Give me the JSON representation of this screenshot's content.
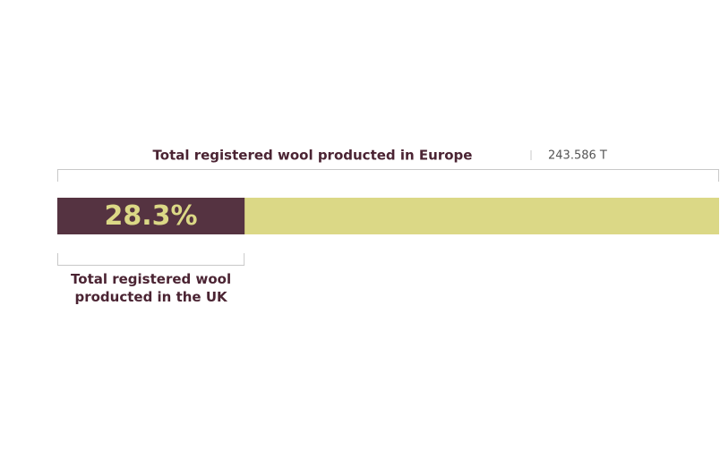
{
  "chart_data": {
    "type": "proportion",
    "title": "Total registered wool producted in Europe",
    "total_label": "243.586 T",
    "part_label": "Total registered wool producted in the UK",
    "values": [
      28.3
    ],
    "value_labels": [
      "28.3%"
    ],
    "xlim": [
      0,
      100
    ],
    "color": "#553341",
    "track_color": "#dbd886",
    "label_color": "#dbd886"
  }
}
